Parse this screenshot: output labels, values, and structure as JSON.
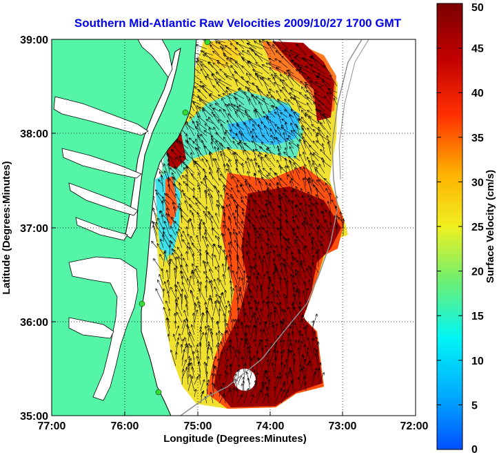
{
  "title": "Southern Mid-Atlantic Raw Velocities 2009/10/27 1700 GMT",
  "xlabel": "Longitude (Degrees:Minutes)",
  "ylabel": "Latitude (Degrees:Minutes)",
  "x_ticks": [
    "77:00",
    "76:00",
    "75:00",
    "74:00",
    "73:00",
    "72:00"
  ],
  "y_ticks": [
    "39:00",
    "38:00",
    "37:00",
    "36:00",
    "35:00"
  ],
  "colorbar": {
    "label": "Surface Velocity (cm/s)",
    "ticks": [
      "50",
      "45",
      "40",
      "35",
      "30",
      "25",
      "20",
      "15",
      "10",
      "5",
      "0"
    ],
    "min": 0,
    "max": 50
  },
  "colors": {
    "land": "#55f5a8",
    "ocean": "#ffffff",
    "coastline": "#000000",
    "title": "#0000ee",
    "station": "#33dd33"
  },
  "grid": "dotted"
}
